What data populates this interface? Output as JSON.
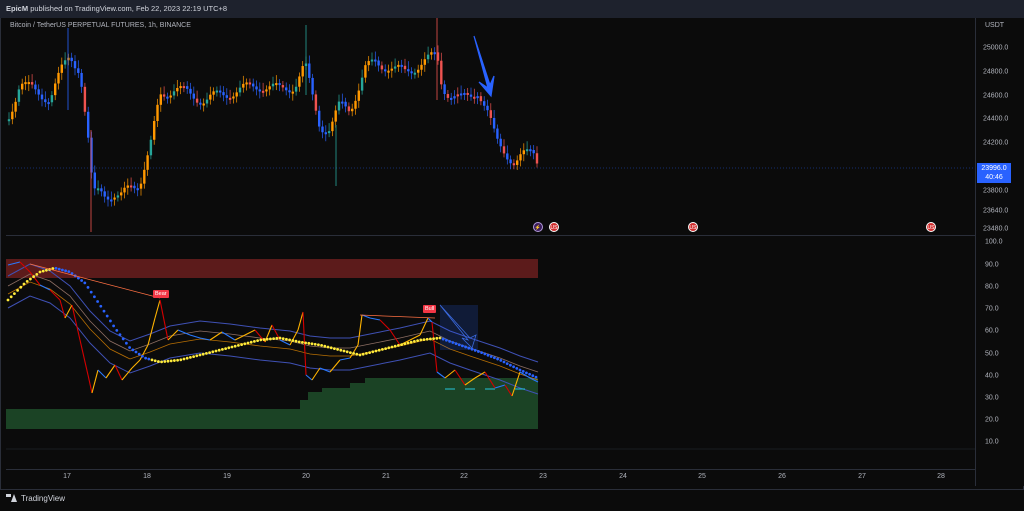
{
  "header": {
    "author": "EpicM",
    "published_text": "published on TradingView.com, Feb 22, 2023 22:19 UTC+8"
  },
  "symbol_text": "Bitcoin / TetherUS PERPETUAL FUTURES, 1h, BINANCE",
  "currency": "USDT",
  "price_axis_ticks": [
    "25000.0",
    "24800.0",
    "24600.0",
    "24400.0",
    "24200.0",
    "23800.0",
    "23640.0",
    "23480.0"
  ],
  "current_price": {
    "price": "23996.0",
    "countdown": "40:46"
  },
  "indicator_axis_ticks": [
    "100.0",
    "90.0",
    "80.0",
    "70.0",
    "60.0",
    "50.0",
    "40.0",
    "30.0",
    "20.0",
    "10.0"
  ],
  "date_ticks": [
    "17",
    "18",
    "19",
    "20",
    "21",
    "22",
    "23",
    "24",
    "25",
    "26",
    "27",
    "28"
  ],
  "labels": {
    "bear": "Bear",
    "bull": "Bull"
  },
  "events": [
    "⚡",
    "US",
    "US",
    "US"
  ],
  "footer": {
    "brand": "TradingView"
  },
  "colors": {
    "bull_candle": "#26a69a",
    "bear_candle": "#ef5350",
    "orange_candle": "#ff9800",
    "blue_candle": "#2962ff",
    "accent": "#2962ff"
  }
}
